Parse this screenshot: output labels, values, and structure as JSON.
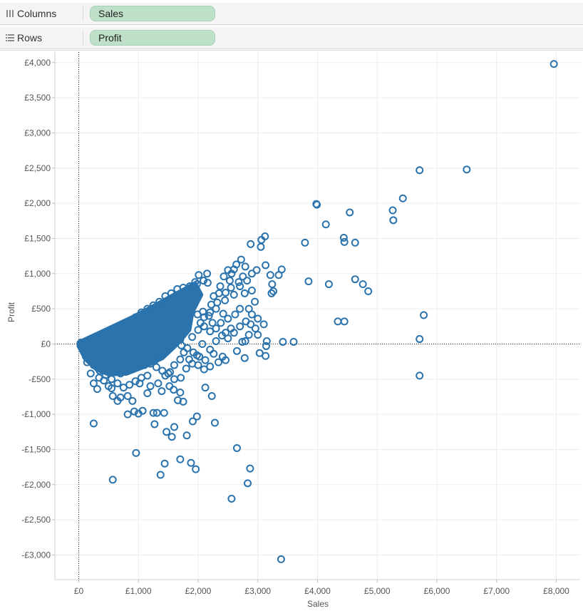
{
  "shelves": {
    "columns": {
      "label": "Columns",
      "pill": "Sales"
    },
    "rows": {
      "label": "Rows",
      "pill": "Profit"
    }
  },
  "colors": {
    "marks": "#2b73ad",
    "pill_bg": "#bee0c9",
    "shelf_bg": "#f4f4f4",
    "grid": "#ececec"
  },
  "chart_data": {
    "type": "scatter",
    "xlabel": "Sales",
    "ylabel": "Profit",
    "xlim": [
      -400,
      8400
    ],
    "ylim": [
      -3350,
      4150
    ],
    "x_ticks": [
      0,
      1000,
      2000,
      3000,
      4000,
      5000,
      6000,
      7000,
      8000
    ],
    "x_tick_labels": [
      "£0",
      "£1,000",
      "£2,000",
      "£3,000",
      "£4,000",
      "£5,000",
      "£6,000",
      "£7,000",
      "£8,000"
    ],
    "y_ticks": [
      4000,
      3500,
      3000,
      2500,
      2000,
      1500,
      1000,
      500,
      0,
      -500,
      -1000,
      -1500,
      -2000,
      -2500,
      -3000
    ],
    "y_tick_labels": [
      "£4,000",
      "£3,500",
      "£3,000",
      "£2,500",
      "£2,000",
      "£1,500",
      "£1,000",
      "£500",
      "£0",
      "-£500",
      "-£1,000",
      "-£1,500",
      "-£2,000",
      "-£2,500",
      "-£3,000"
    ],
    "grid": true,
    "zero_lines": true,
    "marker": "open-circle",
    "points": [
      [
        7960,
        3980
      ],
      [
        6500,
        2480
      ],
      [
        5710,
        2470
      ],
      [
        5430,
        2070
      ],
      [
        5260,
        1900
      ],
      [
        5270,
        1760
      ],
      [
        3980,
        1990
      ],
      [
        3990,
        1980
      ],
      [
        4140,
        1700
      ],
      [
        4540,
        1870
      ],
      [
        4440,
        1510
      ],
      [
        4450,
        1450
      ],
      [
        4630,
        1440
      ],
      [
        3790,
        1440
      ],
      [
        3120,
        1530
      ],
      [
        3060,
        1480
      ],
      [
        2880,
        1420
      ],
      [
        3050,
        1380
      ],
      [
        3400,
        1060
      ],
      [
        3210,
        980
      ],
      [
        3240,
        850
      ],
      [
        3260,
        750
      ],
      [
        3230,
        720
      ],
      [
        3130,
        1120
      ],
      [
        2980,
        1050
      ],
      [
        2900,
        1000
      ],
      [
        3350,
        980
      ],
      [
        3850,
        890
      ],
      [
        4190,
        850
      ],
      [
        4630,
        920
      ],
      [
        4760,
        850
      ],
      [
        4850,
        750
      ],
      [
        5780,
        410
      ],
      [
        5710,
        70
      ],
      [
        5710,
        -450
      ],
      [
        4340,
        320
      ],
      [
        4450,
        320
      ],
      [
        3420,
        30
      ],
      [
        3600,
        30
      ],
      [
        3150,
        40
      ],
      [
        3140,
        -30
      ],
      [
        3030,
        -130
      ],
      [
        3130,
        -170
      ],
      [
        2780,
        -200
      ],
      [
        2650,
        -100
      ],
      [
        2460,
        -230
      ],
      [
        2410,
        -180
      ],
      [
        2340,
        -260
      ],
      [
        2260,
        -140
      ],
      [
        2120,
        -620
      ],
      [
        2230,
        -740
      ],
      [
        1980,
        -1030
      ],
      [
        2280,
        -1120
      ],
      [
        1910,
        -1100
      ],
      [
        1810,
        -1300
      ],
      [
        1600,
        -1180
      ],
      [
        1560,
        -1320
      ],
      [
        1470,
        -1250
      ],
      [
        1310,
        -980
      ],
      [
        1430,
        -980
      ],
      [
        1250,
        -980
      ],
      [
        1270,
        -1140
      ],
      [
        960,
        -1550
      ],
      [
        1440,
        -1700
      ],
      [
        1700,
        -1640
      ],
      [
        1880,
        -1690
      ],
      [
        1960,
        -1780
      ],
      [
        1370,
        -1860
      ],
      [
        570,
        -1930
      ],
      [
        250,
        -1130
      ],
      [
        2650,
        -1480
      ],
      [
        2870,
        -1770
      ],
      [
        2830,
        -1980
      ],
      [
        2560,
        -2200
      ],
      [
        3390,
        -3060
      ],
      [
        1660,
        -800
      ],
      [
        1750,
        -820
      ],
      [
        1700,
        -690
      ],
      [
        1590,
        -650
      ],
      [
        1070,
        -950
      ],
      [
        1000,
        -990
      ],
      [
        930,
        -960
      ],
      [
        820,
        -1000
      ],
      [
        900,
        -810
      ],
      [
        820,
        -740
      ],
      [
        700,
        -760
      ],
      [
        570,
        -740
      ],
      [
        500,
        -600
      ],
      [
        310,
        -640
      ],
      [
        250,
        -560
      ],
      [
        200,
        -420
      ],
      [
        140,
        -260
      ],
      [
        340,
        -480
      ],
      [
        420,
        -520
      ],
      [
        550,
        -630
      ],
      [
        650,
        -810
      ],
      [
        1200,
        -600
      ],
      [
        1330,
        -560
      ],
      [
        1450,
        -450
      ],
      [
        1530,
        -400
      ],
      [
        1600,
        -500
      ],
      [
        1710,
        -480
      ],
      [
        1150,
        -700
      ],
      [
        1020,
        -560
      ],
      [
        1390,
        -670
      ],
      [
        1520,
        -600
      ],
      [
        2880,
        280
      ],
      [
        2960,
        220
      ],
      [
        2850,
        130
      ],
      [
        3000,
        130
      ],
      [
        2740,
        30
      ],
      [
        2790,
        40
      ],
      [
        2550,
        220
      ],
      [
        2620,
        420
      ],
      [
        2700,
        500
      ],
      [
        2850,
        500
      ],
      [
        2780,
        720
      ],
      [
        2820,
        900
      ],
      [
        2790,
        1100
      ],
      [
        2720,
        1200
      ],
      [
        2640,
        1130
      ],
      [
        2600,
        1060
      ],
      [
        2560,
        1000
      ],
      [
        2500,
        1050
      ],
      [
        2530,
        900
      ],
      [
        2430,
        960
      ],
      [
        2370,
        820
      ],
      [
        2460,
        730
      ],
      [
        2350,
        720
      ],
      [
        2260,
        680
      ],
      [
        2320,
        590
      ],
      [
        2220,
        560
      ],
      [
        2180,
        400
      ],
      [
        2080,
        460
      ],
      [
        2040,
        300
      ],
      [
        1990,
        420
      ],
      [
        2240,
        300
      ],
      [
        2420,
        430
      ],
      [
        2500,
        360
      ],
      [
        2380,
        300
      ],
      [
        2460,
        160
      ],
      [
        2300,
        40
      ],
      [
        2200,
        -80
      ],
      [
        2070,
        0
      ],
      [
        1980,
        -160
      ],
      [
        1900,
        100
      ],
      [
        1850,
        -220
      ],
      [
        1760,
        -120
      ],
      [
        1700,
        60
      ],
      [
        2160,
        870
      ],
      [
        2090,
        900
      ],
      [
        2150,
        1000
      ],
      [
        2010,
        980
      ],
      [
        1980,
        850
      ],
      [
        1920,
        730
      ],
      [
        1880,
        600
      ],
      [
        1800,
        650
      ],
      [
        1810,
        460
      ],
      [
        1720,
        520
      ],
      [
        1690,
        380
      ],
      [
        1620,
        520
      ],
      [
        1580,
        300
      ],
      [
        1510,
        370
      ],
      [
        1460,
        160
      ],
      [
        1390,
        240
      ],
      [
        1360,
        40
      ],
      [
        1310,
        130
      ],
      [
        1270,
        -240
      ],
      [
        1220,
        -140
      ],
      [
        1180,
        -40
      ],
      [
        1100,
        -300
      ],
      [
        1080,
        180
      ],
      [
        1000,
        260
      ],
      [
        940,
        -200
      ],
      [
        900,
        80
      ],
      [
        880,
        330
      ],
      [
        830,
        -360
      ],
      [
        780,
        -160
      ],
      [
        760,
        230
      ],
      [
        700,
        -420
      ],
      [
        660,
        20
      ],
      [
        600,
        -270
      ],
      [
        560,
        120
      ],
      [
        500,
        -380
      ],
      [
        460,
        -60
      ],
      [
        420,
        -210
      ],
      [
        380,
        60
      ],
      [
        350,
        -320
      ],
      [
        300,
        -150
      ],
      [
        260,
        40
      ],
      [
        220,
        -260
      ],
      [
        180,
        -80
      ],
      [
        150,
        30
      ],
      [
        120,
        -180
      ],
      [
        100,
        -60
      ],
      [
        80,
        10
      ],
      [
        60,
        -30
      ],
      [
        40,
        20
      ],
      [
        1050,
        450
      ],
      [
        1150,
        500
      ],
      [
        1250,
        550
      ],
      [
        1350,
        600
      ],
      [
        1450,
        680
      ],
      [
        1550,
        720
      ],
      [
        1650,
        780
      ],
      [
        1750,
        800
      ],
      [
        1860,
        820
      ],
      [
        1950,
        880
      ],
      [
        1400,
        420
      ],
      [
        1300,
        380
      ],
      [
        1200,
        340
      ],
      [
        1100,
        300
      ],
      [
        950,
        380
      ],
      [
        850,
        320
      ],
      [
        750,
        280
      ],
      [
        650,
        240
      ],
      [
        550,
        200
      ],
      [
        450,
        160
      ],
      [
        350,
        120
      ],
      [
        250,
        90
      ],
      [
        200,
        60
      ],
      [
        1320,
        320
      ],
      [
        1420,
        220
      ],
      [
        1520,
        140
      ],
      [
        1620,
        60
      ],
      [
        1720,
        -20
      ],
      [
        1820,
        -60
      ],
      [
        1920,
        -120
      ],
      [
        2020,
        -180
      ],
      [
        2120,
        -230
      ],
      [
        1000,
        -120
      ],
      [
        1100,
        -200
      ],
      [
        1200,
        -280
      ],
      [
        1300,
        -330
      ],
      [
        1400,
        -380
      ],
      [
        1500,
        -420
      ],
      [
        1600,
        -300
      ],
      [
        1700,
        -220
      ],
      [
        1800,
        -350
      ],
      [
        1900,
        -280
      ],
      [
        2000,
        -300
      ],
      [
        2100,
        -360
      ],
      [
        2200,
        -320
      ],
      [
        1150,
        -450
      ],
      [
        1050,
        -480
      ],
      [
        950,
        -530
      ],
      [
        850,
        -580
      ],
      [
        750,
        -620
      ],
      [
        650,
        -560
      ],
      [
        550,
        -500
      ],
      [
        450,
        -440
      ],
      [
        350,
        -380
      ],
      [
        250,
        -300
      ],
      [
        2000,
        200
      ],
      [
        2100,
        250
      ],
      [
        2200,
        180
      ],
      [
        2300,
        220
      ],
      [
        2400,
        120
      ],
      [
        2500,
        80
      ],
      [
        2600,
        160
      ],
      [
        2700,
        250
      ],
      [
        2800,
        320
      ],
      [
        2900,
        420
      ],
      [
        2950,
        600
      ],
      [
        2600,
        700
      ],
      [
        2700,
        820
      ],
      [
        2450,
        620
      ],
      [
        2300,
        500
      ],
      [
        2200,
        450
      ],
      [
        2100,
        380
      ],
      [
        3100,
        280
      ],
      [
        3000,
        360
      ],
      [
        2900,
        760
      ],
      [
        2750,
        960
      ],
      [
        2680,
        880
      ],
      [
        2550,
        800
      ]
    ]
  }
}
